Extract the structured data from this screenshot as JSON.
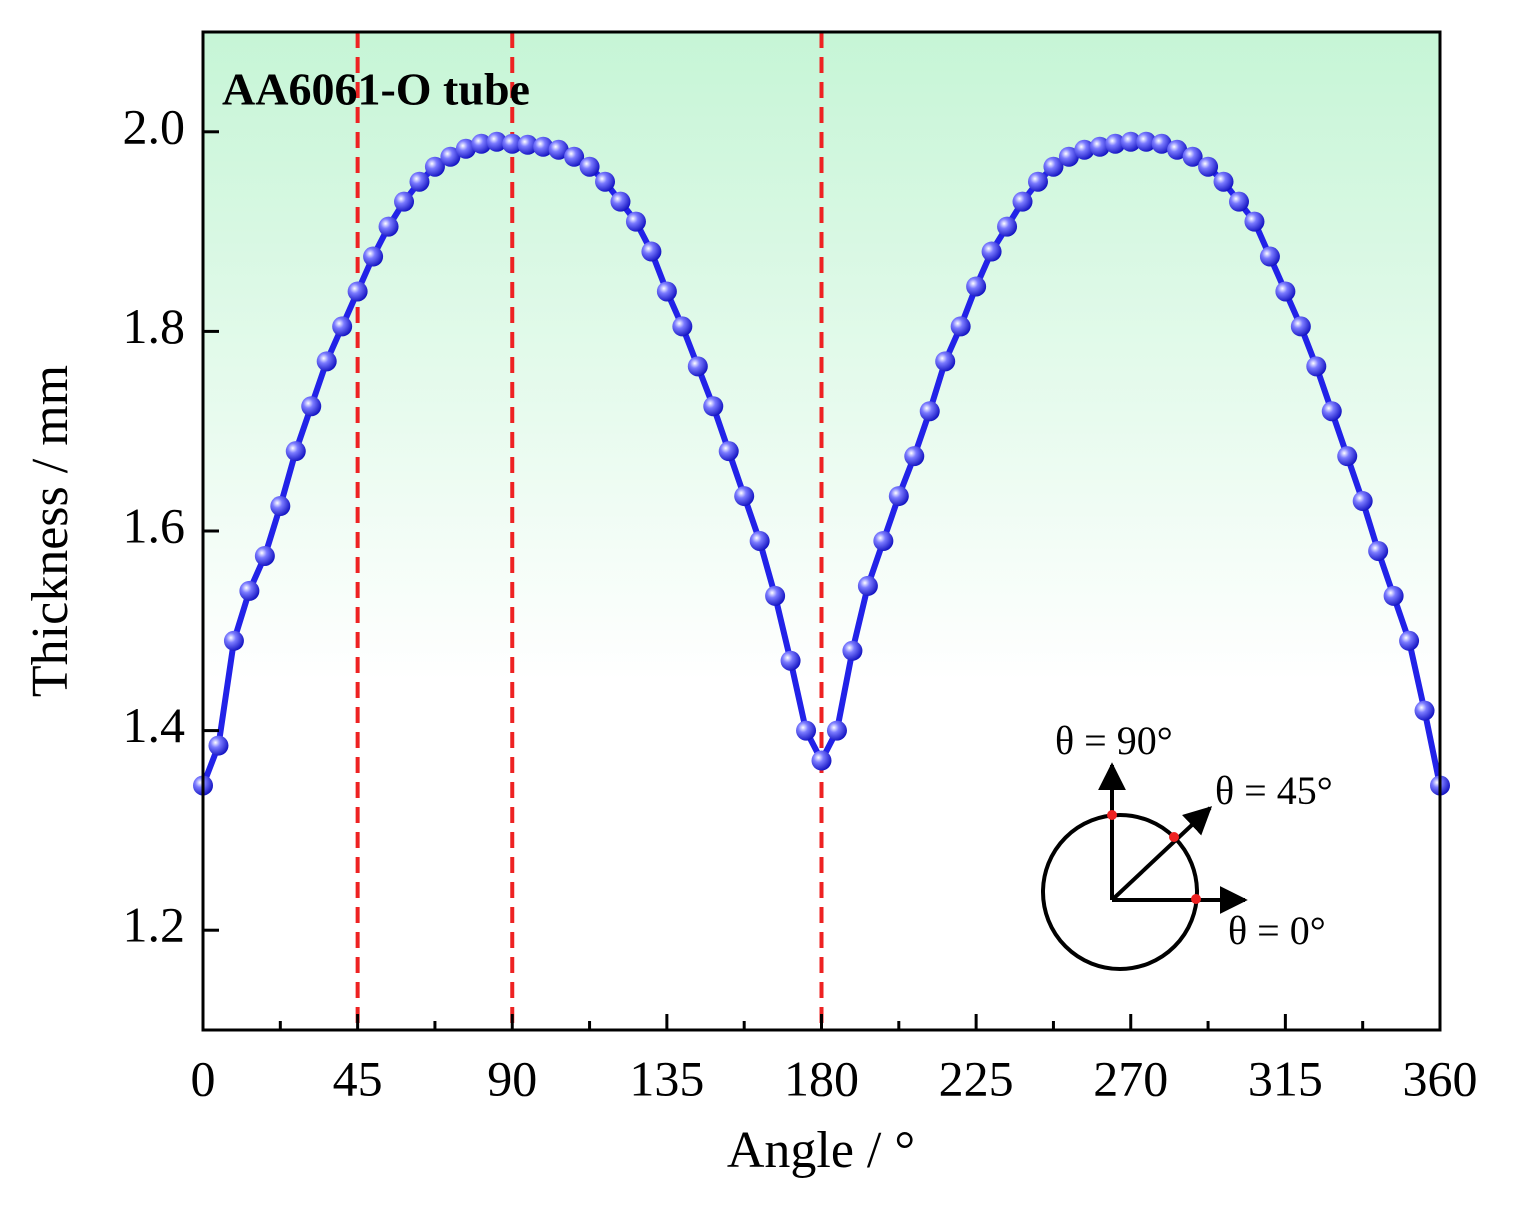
{
  "chart_data": {
    "type": "line",
    "title": "AA6061-O tube",
    "x_label": "Angle / °",
    "y_label": "Thickness / mm",
    "x": [
      0,
      4.5,
      9,
      13.5,
      18,
      22.5,
      27,
      31.5,
      36,
      40.5,
      45,
      49.5,
      54,
      58.5,
      63,
      67.5,
      72,
      76.5,
      81,
      85.5,
      90,
      94.5,
      99,
      103.5,
      108,
      112.5,
      117,
      121.5,
      126,
      130.5,
      135,
      139.5,
      144,
      148.5,
      153,
      157.5,
      162,
      166.5,
      171,
      175.5,
      180,
      184.5,
      189,
      193.5,
      198,
      202.5,
      207,
      211.5,
      216,
      220.5,
      225,
      229.5,
      234,
      238.5,
      243,
      247.5,
      252,
      256.5,
      261,
      265.5,
      270,
      274.5,
      279,
      283.5,
      288,
      292.5,
      297,
      301.5,
      306,
      310.5,
      315,
      319.5,
      324,
      328.5,
      333,
      337.5,
      342,
      346.5,
      351,
      355.5,
      360
    ],
    "series": [
      {
        "color": "#2222e8",
        "values": [
          1.345,
          1.385,
          1.49,
          1.54,
          1.575,
          1.625,
          1.68,
          1.725,
          1.77,
          1.805,
          1.84,
          1.875,
          1.905,
          1.93,
          1.95,
          1.965,
          1.975,
          1.983,
          1.988,
          1.99,
          1.988,
          1.987,
          1.985,
          1.982,
          1.975,
          1.965,
          1.95,
          1.93,
          1.91,
          1.88,
          1.84,
          1.805,
          1.765,
          1.725,
          1.68,
          1.635,
          1.59,
          1.535,
          1.47,
          1.4,
          1.37,
          1.4,
          1.48,
          1.545,
          1.59,
          1.635,
          1.675,
          1.72,
          1.77,
          1.805,
          1.845,
          1.88,
          1.905,
          1.93,
          1.95,
          1.965,
          1.975,
          1.982,
          1.985,
          1.988,
          1.99,
          1.99,
          1.988,
          1.982,
          1.975,
          1.965,
          1.95,
          1.93,
          1.91,
          1.875,
          1.84,
          1.805,
          1.765,
          1.72,
          1.675,
          1.63,
          1.58,
          1.535,
          1.49,
          1.42,
          1.345
        ]
      }
    ],
    "xlim": [
      0,
      360
    ],
    "xticks": [
      0,
      45,
      90,
      135,
      180,
      225,
      270,
      315,
      360
    ],
    "xminorticks": [
      22.5,
      67.5,
      112.5,
      157.5,
      202.5,
      247.5,
      292.5,
      337.5
    ],
    "ylim": [
      1.1,
      2.1
    ],
    "yticks": [
      1.2,
      1.4,
      1.6,
      1.8,
      {
        "value": 2.0,
        "label": "2.0"
      }
    ],
    "vlines": [
      45,
      90,
      180
    ],
    "vline_color": "#ee2222",
    "inset_labels": [
      "θ = 90°",
      "θ = 45°",
      "θ = 0°"
    ]
  }
}
